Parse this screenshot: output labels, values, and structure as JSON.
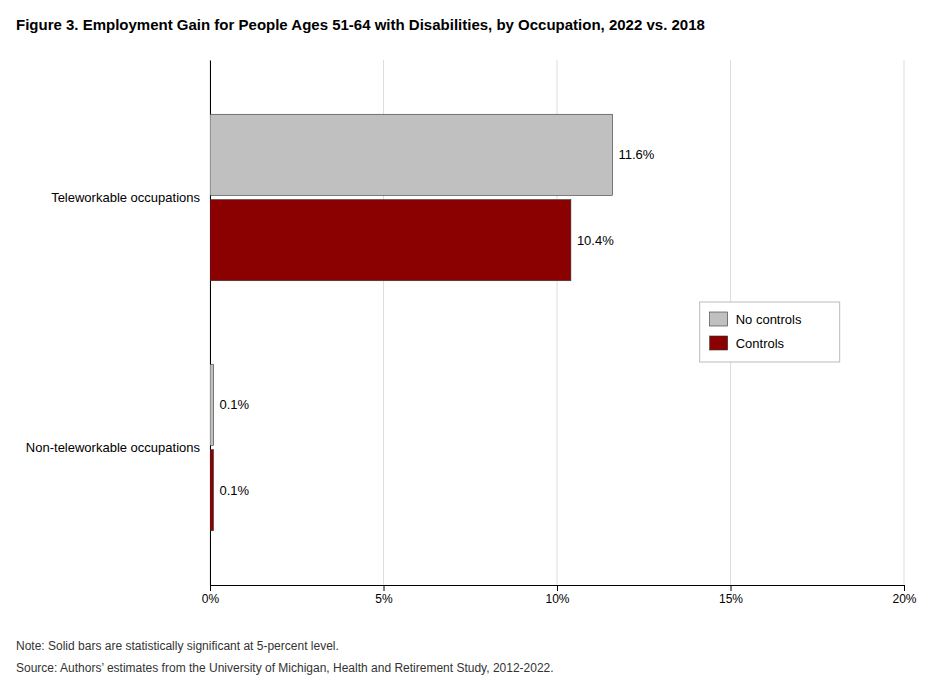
{
  "chart_data": {
    "type": "bar",
    "orientation": "horizontal",
    "title": "Figure 3. Employment Gain for People Ages 51-64 with Disabilities, by Occupation, 2022 vs. 2018",
    "annotations": [
      "Note: Solid bars are statistically significant at 5-percent level.",
      "Source: Authors’ estimates from the University of Michigan, Health and Retirement Study, 2012-2022."
    ],
    "categories": [
      "Teleworkable occupations",
      "Non-teleworkable occupations"
    ],
    "series": [
      {
        "name": "No controls",
        "color": "#C0C0C0",
        "values": [
          11.6,
          0.1
        ],
        "value_labels": [
          "11.6%",
          "0.1%"
        ]
      },
      {
        "name": "Controls",
        "color": "#8B0000",
        "values": [
          10.4,
          0.1
        ],
        "value_labels": [
          "10.4%",
          "0.1%"
        ]
      }
    ],
    "xlim": [
      0,
      20
    ],
    "xticks": [
      {
        "value": 0,
        "label": "0%"
      },
      {
        "value": 5,
        "label": "5%"
      },
      {
        "value": 10,
        "label": "10%"
      },
      {
        "value": 15,
        "label": "15%"
      },
      {
        "value": 20,
        "label": "20%"
      }
    ],
    "grid": true,
    "legend": "right",
    "data_labels": true
  }
}
